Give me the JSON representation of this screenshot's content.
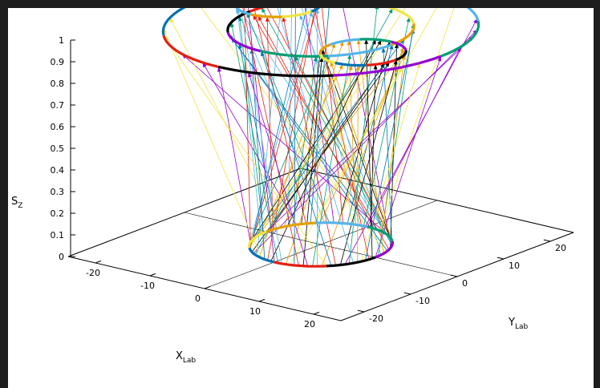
{
  "chart_data": {
    "type": "line",
    "subtype": "3d-vector-field",
    "title": "",
    "xlabel": {
      "main": "X",
      "sub": "Lab"
    },
    "ylabel": {
      "main": "Y",
      "sub": "Lab"
    },
    "zlabel": {
      "main": "S",
      "sub": "Z"
    },
    "x_ticks": [
      "-20",
      "-10",
      "0",
      "10",
      "20"
    ],
    "y_ticks": [
      "-20",
      "-10",
      "0",
      "10",
      "20"
    ],
    "z_ticks": [
      "0",
      "0.1",
      "0.2",
      "0.3",
      "0.4",
      "0.5",
      "0.6",
      "0.7",
      "0.8",
      "0.9",
      "1"
    ],
    "xlim": [
      -25,
      25
    ],
    "ylim": [
      -25,
      25
    ],
    "zlim": [
      0,
      1
    ],
    "base_ring": {
      "z": 0,
      "radius": 10
    },
    "top_circles": [
      {
        "name": "large",
        "cx": 0,
        "cy": 0,
        "r": 22,
        "z": 1
      },
      {
        "name": "medium",
        "cx": 0,
        "cy": 0,
        "r": 13,
        "z": 1
      },
      {
        "name": "left-small",
        "cx": -12,
        "cy": 5,
        "r": 6,
        "z": 1
      },
      {
        "name": "right-small",
        "cx": 12,
        "cy": -5,
        "r": 6,
        "z": 1
      }
    ],
    "series_colors": [
      "#9400d3",
      "#009e73",
      "#56b4e9",
      "#e69f00",
      "#f0e442",
      "#0072b2",
      "#e51e10",
      "#000000"
    ],
    "grid": false,
    "legend": "none"
  }
}
